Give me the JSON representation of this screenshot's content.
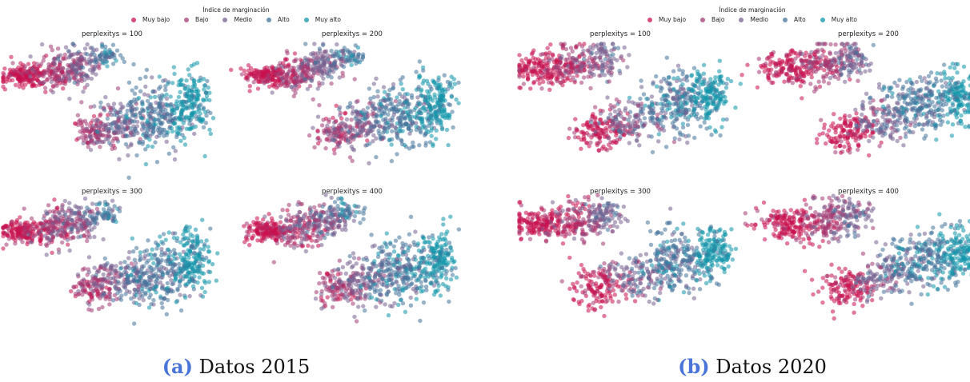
{
  "legend": {
    "title": "Índice de marginación",
    "classes": [
      {
        "label": "Muy bajo",
        "color": "#c8104f"
      },
      {
        "label": "Bajo",
        "color": "#a33a73"
      },
      {
        "label": "Medio",
        "color": "#76608f"
      },
      {
        "label": "Alto",
        "color": "#43739a"
      },
      {
        "label": "Muy alto",
        "color": "#0e95a9"
      }
    ]
  },
  "figures": [
    {
      "tag": "(a)",
      "caption": "Datos 2015"
    },
    {
      "tag": "(b)",
      "caption": "Datos 2020"
    }
  ],
  "chart_data": [
    {
      "type": "scatter",
      "dataset": "2015",
      "title": "perplexitys = 100",
      "axes": "off",
      "grid": false,
      "point_classes": [
        "Muy bajo",
        "Bajo",
        "Medio",
        "Alto",
        "Muy alto"
      ]
    },
    {
      "type": "scatter",
      "dataset": "2015",
      "title": "perplexitys = 200",
      "axes": "off",
      "grid": false,
      "point_classes": [
        "Muy bajo",
        "Bajo",
        "Medio",
        "Alto",
        "Muy alto"
      ]
    },
    {
      "type": "scatter",
      "dataset": "2015",
      "title": "perplexitys = 300",
      "axes": "off",
      "grid": false,
      "point_classes": [
        "Muy bajo",
        "Bajo",
        "Medio",
        "Alto",
        "Muy alto"
      ]
    },
    {
      "type": "scatter",
      "dataset": "2015",
      "title": "perplexitys = 400",
      "axes": "off",
      "grid": false,
      "point_classes": [
        "Muy bajo",
        "Bajo",
        "Medio",
        "Alto",
        "Muy alto"
      ]
    },
    {
      "type": "scatter",
      "dataset": "2020",
      "title": "perplexitys = 100",
      "axes": "off",
      "grid": false,
      "point_classes": [
        "Muy bajo",
        "Bajo",
        "Medio",
        "Alto",
        "Muy alto"
      ]
    },
    {
      "type": "scatter",
      "dataset": "2020",
      "title": "perplexitys = 200",
      "axes": "off",
      "grid": false,
      "point_classes": [
        "Muy bajo",
        "Bajo",
        "Medio",
        "Alto",
        "Muy alto"
      ]
    },
    {
      "type": "scatter",
      "dataset": "2020",
      "title": "perplexitys = 300",
      "axes": "off",
      "grid": false,
      "point_classes": [
        "Muy bajo",
        "Bajo",
        "Medio",
        "Alto",
        "Muy alto"
      ]
    },
    {
      "type": "scatter",
      "dataset": "2020",
      "title": "perplexitys = 400",
      "axes": "off",
      "grid": false,
      "point_classes": [
        "Muy bajo",
        "Bajo",
        "Medio",
        "Alto",
        "Muy alto"
      ]
    }
  ]
}
